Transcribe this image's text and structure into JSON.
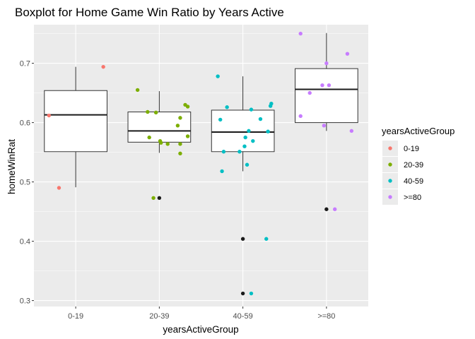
{
  "chart_data": {
    "type": "boxplot",
    "title": "Boxplot for Home Game Win Ratio by Years Active",
    "xlabel": "yearsActiveGroup",
    "ylabel": "homeWinRat",
    "categories": [
      "0-19",
      "20-39",
      "40-59",
      ">=80"
    ],
    "y_ticks": [
      0.3,
      0.4,
      0.5,
      0.6,
      0.7
    ],
    "ylim": [
      0.29,
      0.765
    ],
    "grid": true,
    "legend": {
      "title": "yearsActiveGroup",
      "position": "right",
      "items": [
        {
          "label": "0-19",
          "color": "#F8766D"
        },
        {
          "label": "20-39",
          "color": "#7CAE00"
        },
        {
          "label": "40-59",
          "color": "#00BFC4"
        },
        {
          "label": ">=80",
          "color": "#C77CFF"
        }
      ]
    },
    "boxes": [
      {
        "category": "0-19",
        "whisker_low": 0.491,
        "q1": 0.551,
        "median": 0.613,
        "q3": 0.654,
        "whisker_high": 0.694,
        "outliers": []
      },
      {
        "category": "20-39",
        "whisker_low": 0.549,
        "q1": 0.567,
        "median": 0.586,
        "q3": 0.618,
        "whisker_high": 0.653,
        "outliers": [
          0.473
        ]
      },
      {
        "category": "40-59",
        "whisker_low": 0.518,
        "q1": 0.551,
        "median": 0.584,
        "q3": 0.621,
        "whisker_high": 0.678,
        "outliers": [
          0.404,
          0.312
        ]
      },
      {
        "category": ">=80",
        "whisker_low": 0.586,
        "q1": 0.6,
        "median": 0.656,
        "q3": 0.691,
        "whisker_high": 0.751,
        "outliers": [
          0.454
        ]
      }
    ],
    "points": [
      {
        "group": "0-19",
        "x": 0.68,
        "y": 0.612
      },
      {
        "group": "0-19",
        "x": 0.8,
        "y": 0.49
      },
      {
        "group": "0-19",
        "x": 1.33,
        "y": 0.694
      },
      {
        "group": "20-39",
        "x": 1.74,
        "y": 0.655
      },
      {
        "group": "20-39",
        "x": 1.86,
        "y": 0.618
      },
      {
        "group": "20-39",
        "x": 1.96,
        "y": 0.617
      },
      {
        "group": "20-39",
        "x": 1.88,
        "y": 0.575
      },
      {
        "group": "20-39",
        "x": 1.93,
        "y": 0.473
      },
      {
        "group": "20-39",
        "x": 2.02,
        "y": 0.566
      },
      {
        "group": "20-39",
        "x": 2.1,
        "y": 0.564
      },
      {
        "group": "20-39",
        "x": 2.01,
        "y": 0.569
      },
      {
        "group": "20-39",
        "x": 2.22,
        "y": 0.595
      },
      {
        "group": "20-39",
        "x": 2.25,
        "y": 0.608
      },
      {
        "group": "20-39",
        "x": 2.25,
        "y": 0.564
      },
      {
        "group": "20-39",
        "x": 2.25,
        "y": 0.548
      },
      {
        "group": "20-39",
        "x": 2.31,
        "y": 0.63
      },
      {
        "group": "20-39",
        "x": 2.34,
        "y": 0.627
      },
      {
        "group": "20-39",
        "x": 2.34,
        "y": 0.577
      },
      {
        "group": "40-59",
        "x": 2.7,
        "y": 0.678
      },
      {
        "group": "40-59",
        "x": 2.73,
        "y": 0.605
      },
      {
        "group": "40-59",
        "x": 2.75,
        "y": 0.518
      },
      {
        "group": "40-59",
        "x": 2.77,
        "y": 0.551
      },
      {
        "group": "40-59",
        "x": 2.81,
        "y": 0.626
      },
      {
        "group": "40-59",
        "x": 2.96,
        "y": 0.551
      },
      {
        "group": "40-59",
        "x": 3.03,
        "y": 0.575
      },
      {
        "group": "40-59",
        "x": 3.02,
        "y": 0.56
      },
      {
        "group": "40-59",
        "x": 3.05,
        "y": 0.529
      },
      {
        "group": "40-59",
        "x": 3.07,
        "y": 0.586
      },
      {
        "group": "40-59",
        "x": 3.1,
        "y": 0.622
      },
      {
        "group": "40-59",
        "x": 3.1,
        "y": 0.312
      },
      {
        "group": "40-59",
        "x": 3.12,
        "y": 0.569
      },
      {
        "group": "40-59",
        "x": 3.21,
        "y": 0.606
      },
      {
        "group": "40-59",
        "x": 3.28,
        "y": 0.404
      },
      {
        "group": "40-59",
        "x": 3.3,
        "y": 0.585
      },
      {
        "group": "40-59",
        "x": 3.33,
        "y": 0.628
      },
      {
        "group": "40-59",
        "x": 3.34,
        "y": 0.632
      },
      {
        "group": ">=80",
        "x": 3.69,
        "y": 0.75
      },
      {
        "group": ">=80",
        "x": 3.69,
        "y": 0.611
      },
      {
        "group": ">=80",
        "x": 3.8,
        "y": 0.65
      },
      {
        "group": ">=80",
        "x": 3.95,
        "y": 0.663
      },
      {
        "group": ">=80",
        "x": 3.97,
        "y": 0.595
      },
      {
        "group": ">=80",
        "x": 4.0,
        "y": 0.7
      },
      {
        "group": ">=80",
        "x": 4.03,
        "y": 0.663
      },
      {
        "group": ">=80",
        "x": 4.1,
        "y": 0.454
      },
      {
        "group": ">=80",
        "x": 4.25,
        "y": 0.716
      },
      {
        "group": ">=80",
        "x": 4.3,
        "y": 0.586
      }
    ]
  }
}
